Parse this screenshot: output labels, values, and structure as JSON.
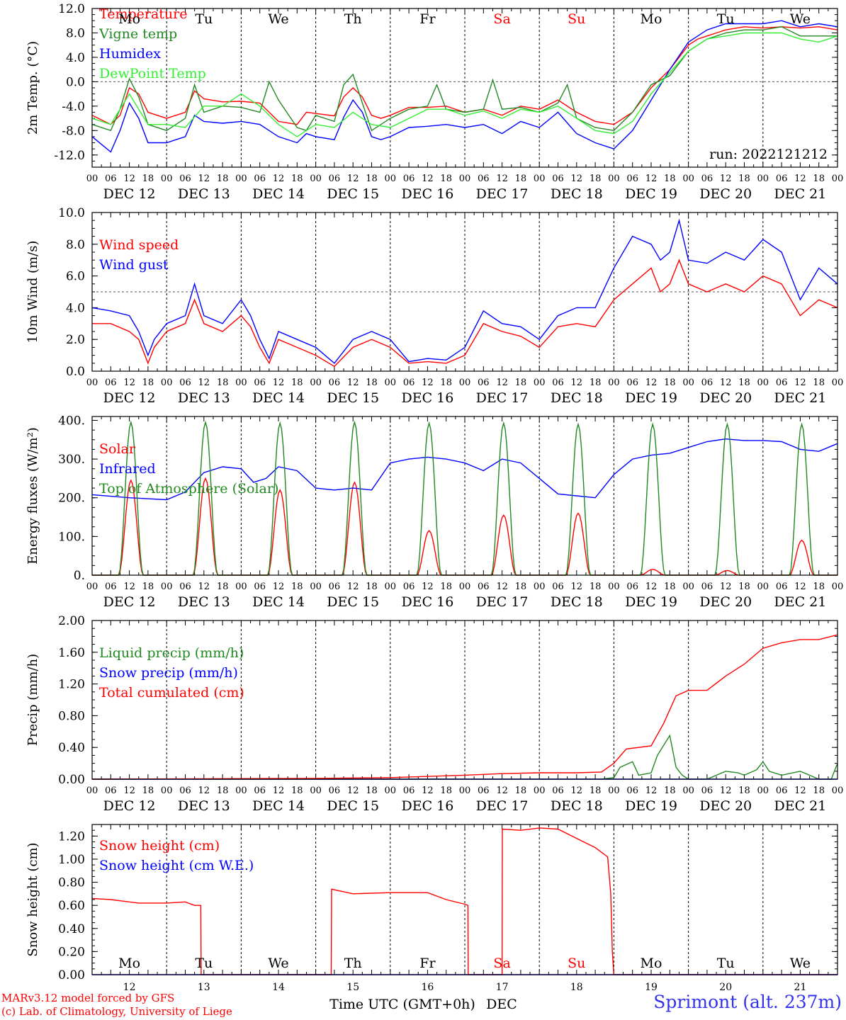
{
  "days": [
    "DEC 12",
    "DEC 13",
    "DEC 14",
    "DEC 15",
    "DEC 16",
    "DEC 17",
    "DEC 18",
    "DEC 19",
    "DEC 20",
    "DEC 21"
  ],
  "weekdays": [
    "Mo",
    "Tu",
    "We",
    "Th",
    "Fr",
    "Sa",
    "Su",
    "Mo",
    "Tu",
    "We"
  ],
  "weekday_colors": [
    "#000000",
    "#000000",
    "#000000",
    "#000000",
    "#000000",
    "#ff0000",
    "#ff0000",
    "#000000",
    "#000000",
    "#000000"
  ],
  "hour_ticks": [
    "00",
    "06",
    "12",
    "18"
  ],
  "day_numbers": [
    "12",
    "13",
    "14",
    "15",
    "16",
    "17",
    "18",
    "19",
    "20",
    "21"
  ],
  "footer": {
    "credit_line1": "MARv3.12 model forced by GFS",
    "credit_line2": "(c) Lab. of Climatology, University of Liege",
    "xlabel": "Time UTC (GMT+0h)",
    "month": "DEC",
    "station": "Sprimont (alt. 237m)"
  },
  "chart_data": [
    {
      "type": "line",
      "ylabel": "2m Temp. (°C)",
      "ylim": [
        -14,
        12
      ],
      "yticks": [
        "12.0",
        "8.0",
        "4.0",
        "0.0",
        "-4.0",
        "-8.0",
        "-12.0"
      ],
      "ytick_values": [
        12,
        8,
        4,
        0,
        -4,
        -8,
        -12
      ],
      "ref_line": 0,
      "annotation": "run: 2022121212",
      "x_unit": "hours since DEC 12 00 UTC",
      "series": [
        {
          "name": "Temperature",
          "color": "#ff0000",
          "x": [
            0,
            6,
            9,
            12,
            15,
            18,
            24,
            30,
            33,
            36,
            42,
            48,
            54,
            60,
            66,
            69,
            72,
            78,
            81,
            84,
            87,
            90,
            93,
            96,
            102,
            108,
            114,
            120,
            126,
            132,
            138,
            144,
            150,
            156,
            162,
            168,
            174,
            180,
            186,
            192,
            195,
            198,
            204,
            210,
            216,
            222,
            228,
            234,
            240
          ],
          "values": [
            -5.5,
            -7,
            -5.5,
            -1,
            -2,
            -5,
            -6,
            -5,
            -1.5,
            -2.8,
            -3.3,
            -3.2,
            -3.5,
            -6.5,
            -7,
            -5,
            -5.2,
            -5.6,
            -2.5,
            -1,
            -2.5,
            -5.5,
            -6,
            -5.5,
            -4.2,
            -4.2,
            -4,
            -5,
            -4.5,
            -5.5,
            -4,
            -4.5,
            -3,
            -5,
            -6.5,
            -7,
            -5,
            -1,
            2,
            6,
            7,
            7.5,
            8.5,
            9,
            8.8,
            9,
            8.8,
            9,
            8.5
          ]
        },
        {
          "name": "Vigne temp",
          "color": "#228822",
          "x": [
            0,
            6,
            9,
            12,
            15,
            18,
            24,
            30,
            33,
            36,
            42,
            48,
            54,
            57,
            60,
            66,
            69,
            72,
            78,
            81,
            84,
            87,
            90,
            93,
            96,
            102,
            108,
            111,
            114,
            120,
            126,
            129,
            132,
            138,
            144,
            150,
            153,
            156,
            162,
            168,
            174,
            180,
            186,
            192,
            195,
            198,
            204,
            210,
            216,
            222,
            228,
            234,
            240
          ],
          "values": [
            -7,
            -8,
            -4.5,
            0.5,
            -2.5,
            -7,
            -8,
            -6,
            -0.5,
            -5,
            -4,
            -4.2,
            -5,
            0,
            -3,
            -7.5,
            -8,
            -5.5,
            -6.5,
            -0.5,
            1.2,
            -3.5,
            -8,
            -7,
            -6,
            -4.5,
            -4,
            -0.5,
            -4.5,
            -5,
            -4.5,
            0.3,
            -4.5,
            -4.2,
            -5,
            -3.5,
            -0.5,
            -6,
            -7.5,
            -8,
            -5,
            -0.5,
            1,
            5,
            6,
            7,
            8,
            8.5,
            8.5,
            9,
            7.5,
            7.5,
            7.5
          ]
        },
        {
          "name": "Humidex",
          "color": "#0000ff",
          "x": [
            0,
            6,
            9,
            12,
            15,
            18,
            24,
            30,
            33,
            36,
            42,
            48,
            54,
            60,
            66,
            69,
            72,
            78,
            81,
            84,
            87,
            90,
            93,
            96,
            102,
            108,
            114,
            120,
            126,
            132,
            138,
            144,
            150,
            156,
            162,
            168,
            174,
            180,
            186,
            192,
            195,
            198,
            204,
            210,
            216,
            222,
            228,
            234,
            240
          ],
          "values": [
            -9,
            -11.5,
            -8,
            -3.5,
            -6,
            -10,
            -10,
            -9,
            -5.5,
            -6.5,
            -6.8,
            -6.5,
            -7,
            -9,
            -10,
            -8.5,
            -9,
            -9.5,
            -5.8,
            -3,
            -5,
            -9,
            -9.5,
            -9,
            -7.5,
            -7.3,
            -7,
            -7.5,
            -7,
            -8.5,
            -6.5,
            -7.5,
            -5,
            -8.5,
            -10,
            -11,
            -8,
            -3,
            2,
            6.5,
            7.5,
            8.5,
            9.5,
            9.5,
            9.5,
            10,
            9,
            9.5,
            9
          ]
        },
        {
          "name": "DewPoint Temp",
          "color": "#33ee33",
          "x": [
            0,
            6,
            12,
            18,
            24,
            30,
            36,
            42,
            48,
            54,
            60,
            66,
            72,
            78,
            84,
            90,
            96,
            102,
            108,
            114,
            120,
            126,
            132,
            138,
            144,
            150,
            156,
            162,
            168,
            174,
            180,
            186,
            192,
            198,
            204,
            210,
            216,
            222,
            228,
            234,
            240
          ],
          "values": [
            -6,
            -7,
            -2,
            -7,
            -7,
            -7.5,
            -4,
            -4,
            -2,
            -4,
            -7,
            -9,
            -7,
            -7.5,
            -5,
            -7,
            -7.5,
            -6,
            -4.5,
            -4.5,
            -5.5,
            -4.8,
            -6,
            -4.5,
            -5,
            -4,
            -6,
            -8,
            -8.5,
            -6.5,
            -2,
            1.5,
            5,
            7,
            7.5,
            8,
            8,
            8,
            7,
            6.5,
            7.5
          ]
        }
      ]
    },
    {
      "type": "line",
      "ylabel": "10m Wind (m/s)",
      "ylim": [
        0,
        10
      ],
      "yticks": [
        "10.0",
        "8.0",
        "6.0",
        "4.0",
        "2.0",
        "0.0"
      ],
      "ytick_values": [
        10,
        8,
        6,
        4,
        2,
        0
      ],
      "ref_line": 5,
      "annotation": "",
      "x_unit": "hours since DEC 12 00 UTC",
      "series": [
        {
          "name": "Wind speed",
          "color": "#ff0000",
          "x": [
            0,
            6,
            12,
            15,
            18,
            20,
            24,
            30,
            33,
            36,
            42,
            48,
            51,
            54,
            57,
            60,
            66,
            72,
            78,
            84,
            90,
            96,
            102,
            108,
            114,
            120,
            126,
            132,
            138,
            144,
            150,
            156,
            162,
            168,
            174,
            180,
            183,
            186,
            189,
            192,
            198,
            204,
            210,
            216,
            222,
            228,
            234,
            240
          ],
          "values": [
            3,
            3,
            2.5,
            2,
            0.5,
            1.5,
            2.5,
            3,
            4.5,
            3,
            2.5,
            3.5,
            2.8,
            1.5,
            0.5,
            2,
            1.5,
            1,
            0.3,
            1.5,
            2,
            1.5,
            0.5,
            0.6,
            0.5,
            1,
            3,
            2.5,
            2.2,
            1.5,
            2.8,
            3,
            2.8,
            4.5,
            5.5,
            6.5,
            5,
            5.5,
            7,
            5.5,
            5,
            5.5,
            5,
            6,
            5.5,
            3.5,
            4.5,
            4
          ]
        },
        {
          "name": "Wind gust",
          "color": "#0000ff",
          "x": [
            0,
            6,
            12,
            15,
            18,
            20,
            24,
            30,
            33,
            36,
            42,
            48,
            51,
            54,
            57,
            60,
            66,
            72,
            78,
            84,
            90,
            96,
            102,
            108,
            114,
            120,
            126,
            132,
            138,
            144,
            150,
            156,
            162,
            168,
            174,
            180,
            183,
            186,
            189,
            192,
            198,
            204,
            210,
            216,
            222,
            228,
            234,
            240
          ],
          "values": [
            4,
            3.8,
            3.5,
            2.5,
            1,
            2,
            3,
            3.5,
            5.5,
            3.5,
            3,
            4.5,
            3.5,
            2,
            0.8,
            2.5,
            2,
            1.5,
            0.5,
            2,
            2.5,
            2,
            0.6,
            0.8,
            0.7,
            1.5,
            3.8,
            3,
            2.8,
            2,
            3.5,
            4,
            4,
            6.5,
            8.5,
            8,
            7,
            7.5,
            9.5,
            7,
            6.8,
            7.5,
            7,
            8.3,
            7.5,
            4.5,
            6.5,
            5.5
          ]
        }
      ]
    },
    {
      "type": "line",
      "ylabel": "Energy fluxes (W/m²)",
      "ylim": [
        0,
        410
      ],
      "yticks": [
        "400.",
        "300.",
        "200.",
        "100.",
        "0."
      ],
      "ytick_values": [
        400,
        300,
        200,
        100,
        0
      ],
      "ref_line": null,
      "annotation": "",
      "x_unit": "hours since DEC 12 00 UTC",
      "daily_peak_hour": 12.5,
      "daily_halfwidth_hours": 4,
      "series": [
        {
          "name": "Solar",
          "color": "#ff0000",
          "daily_peaks": [
            245,
            250,
            220,
            240,
            115,
            155,
            160,
            15,
            12,
            90
          ]
        },
        {
          "name": "Infrared",
          "color": "#0000ff",
          "x": [
            0,
            12,
            24,
            30,
            36,
            42,
            48,
            52,
            56,
            60,
            66,
            72,
            78,
            84,
            90,
            96,
            102,
            108,
            114,
            120,
            126,
            132,
            138,
            144,
            150,
            156,
            162,
            168,
            174,
            180,
            186,
            192,
            198,
            204,
            210,
            216,
            222,
            228,
            234,
            240
          ],
          "values": [
            208,
            200,
            195,
            215,
            265,
            280,
            275,
            240,
            250,
            280,
            270,
            225,
            220,
            225,
            220,
            290,
            300,
            305,
            300,
            290,
            270,
            300,
            290,
            250,
            210,
            205,
            200,
            260,
            300,
            310,
            315,
            330,
            345,
            352,
            348,
            348,
            345,
            325,
            320,
            340
          ]
        },
        {
          "name": "Top of Atmosphere (Solar)",
          "color": "#228822",
          "daily_peaks": [
            395,
            395,
            393,
            395,
            393,
            393,
            390,
            390,
            390,
            390
          ]
        }
      ]
    },
    {
      "type": "line",
      "ylabel": "Precip (mm/h)",
      "ylim": [
        0,
        2
      ],
      "yticks": [
        "2.00",
        "1.60",
        "1.20",
        "0.80",
        "0.40",
        "0.00"
      ],
      "ytick_values": [
        2,
        1.6,
        1.2,
        0.8,
        0.4,
        0
      ],
      "ref_line": null,
      "annotation": "",
      "x_unit": "hours since DEC 12 00 UTC",
      "series": [
        {
          "name": "Liquid precip (mm/h)",
          "color": "#228822",
          "x": [
            0,
            164,
            168,
            170,
            174,
            176,
            180,
            182,
            186,
            188,
            190,
            192,
            198,
            204,
            208,
            210,
            214,
            216,
            218,
            222,
            228,
            234,
            236,
            238,
            240
          ],
          "values": [
            0,
            0,
            0.02,
            0.15,
            0.22,
            0.05,
            0.08,
            0.3,
            0.55,
            0.15,
            0.05,
            0,
            0,
            0.1,
            0.08,
            0.05,
            0.12,
            0.22,
            0.1,
            0.05,
            0.1,
            0,
            0,
            0,
            0.2
          ]
        },
        {
          "name": "Snow precip (mm/h)",
          "color": "#0000ff",
          "x": [
            0,
            240
          ],
          "values": [
            0,
            0
          ]
        },
        {
          "name": "Total cumulated (cm)",
          "color": "#ff0000",
          "x": [
            0,
            72,
            96,
            120,
            132,
            144,
            156,
            164,
            168,
            172,
            180,
            184,
            188,
            192,
            198,
            204,
            210,
            216,
            222,
            228,
            234,
            240
          ],
          "values": [
            0,
            0.01,
            0.02,
            0.05,
            0.07,
            0.08,
            0.08,
            0.09,
            0.2,
            0.38,
            0.42,
            0.7,
            1.05,
            1.12,
            1.12,
            1.3,
            1.45,
            1.65,
            1.72,
            1.76,
            1.76,
            1.82
          ]
        }
      ]
    },
    {
      "type": "line",
      "ylabel": "Snow height (cm)",
      "ylim": [
        0,
        1.3
      ],
      "yticks": [
        "1.20",
        "1.00",
        "0.80",
        "0.60",
        "0.40",
        "0.20",
        "0.00"
      ],
      "ytick_values": [
        1.2,
        1,
        0.8,
        0.6,
        0.4,
        0.2,
        0
      ],
      "ref_line": null,
      "annotation": "",
      "x_unit": "hours since DEC 12 00 UTC",
      "series": [
        {
          "name": "Snow height (cm)",
          "color": "#ff0000",
          "x": [
            0,
            6,
            12,
            15,
            18,
            24,
            30,
            33,
            35,
            35.1,
            36,
            48,
            72,
            77,
            77.1,
            84,
            96,
            108,
            114,
            120,
            121,
            121.1,
            132,
            132.1,
            138,
            144,
            150,
            156,
            162,
            166,
            167,
            167.5,
            168,
            240
          ],
          "values": [
            0.66,
            0.65,
            0.63,
            0.62,
            0.62,
            0.62,
            0.63,
            0.6,
            0.6,
            0,
            0,
            0,
            0,
            0,
            0.74,
            0.7,
            0.71,
            0.71,
            0.65,
            0.61,
            0.6,
            0,
            0,
            1.26,
            1.25,
            1.27,
            1.26,
            1.18,
            1.1,
            1.02,
            0.7,
            0.2,
            0,
            0
          ]
        },
        {
          "name": "Snow height (cm W.E.)",
          "color": "#0000ff",
          "x": [
            0,
            240
          ],
          "values": [
            0,
            0
          ]
        }
      ]
    }
  ]
}
